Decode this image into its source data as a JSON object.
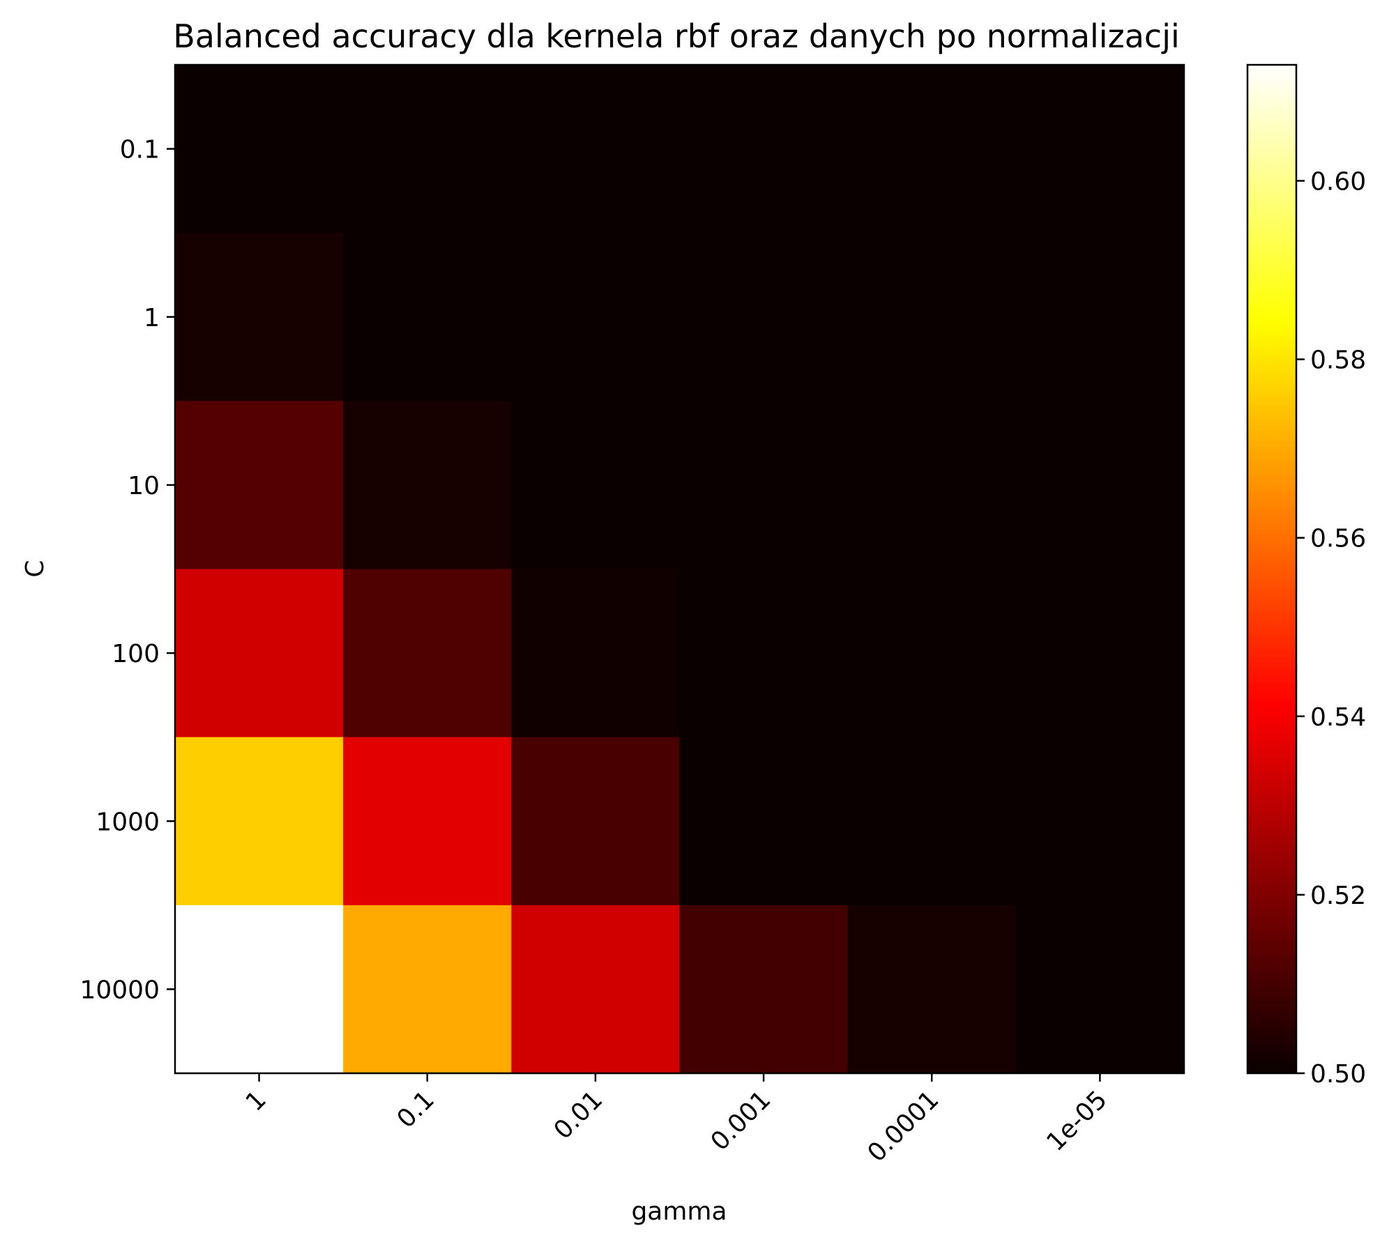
{
  "chart_data": {
    "type": "heatmap",
    "title": "Balanced accuracy dla kernela rbf oraz danych po normalizacji",
    "xlabel": "gamma",
    "ylabel": "C",
    "x_categories": [
      "1",
      "0.1",
      "0.01",
      "0.001",
      "0.0001",
      "1e-05"
    ],
    "y_categories": [
      "0.1",
      "1",
      "10",
      "100",
      "1000",
      "10000"
    ],
    "values": [
      [
        0.5,
        0.5,
        0.5,
        0.5,
        0.5,
        0.5
      ],
      [
        0.502,
        0.5,
        0.5,
        0.5,
        0.5,
        0.5
      ],
      [
        0.512,
        0.502,
        0.5,
        0.5,
        0.5,
        0.5
      ],
      [
        0.532,
        0.511,
        0.501,
        0.5,
        0.5,
        0.5
      ],
      [
        0.576,
        0.535,
        0.51,
        0.5,
        0.5,
        0.5
      ],
      [
        0.613,
        0.57,
        0.532,
        0.509,
        0.502,
        0.5
      ]
    ],
    "colormap": "hot",
    "colorbar": {
      "range": [
        0.5,
        0.613
      ],
      "ticks": [
        0.5,
        0.52,
        0.54,
        0.56,
        0.58,
        0.6
      ],
      "tick_labels": [
        "0.50",
        "0.52",
        "0.54",
        "0.56",
        "0.58",
        "0.60"
      ]
    },
    "x_tick_rotation": 45,
    "grid": false
  }
}
